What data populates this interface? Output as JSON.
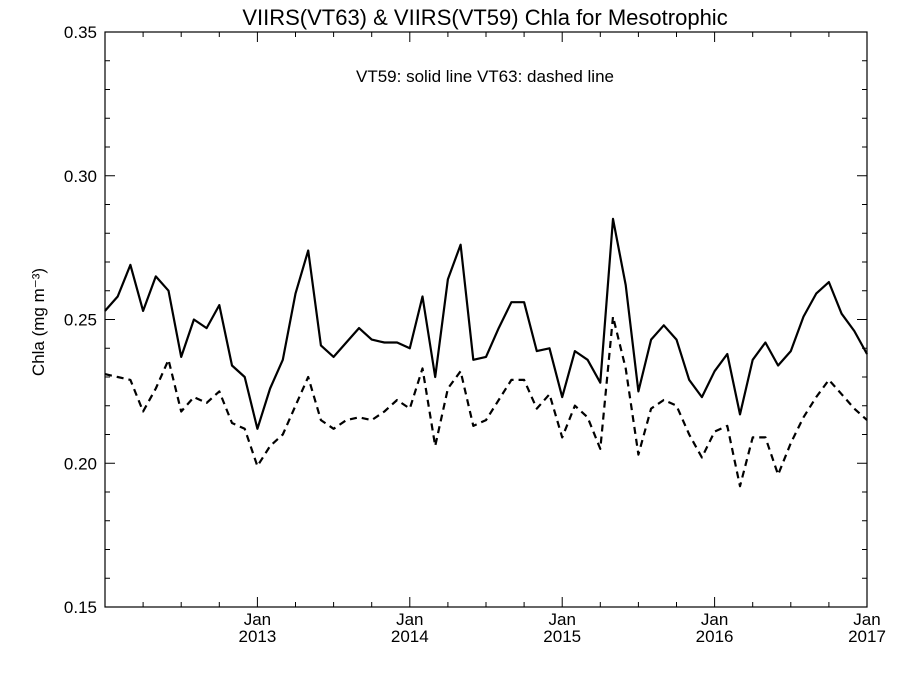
{
  "chart_data": {
    "type": "line",
    "title": "VIIRS(VT63) & VIIRS(VT59)  Chla for Mesotrophic",
    "annotation": "VT59: solid line   VT63: dashed line",
    "ylabel": "Chla (mg m⁻³)",
    "xlabel": "",
    "ylim": [
      0.15,
      0.35
    ],
    "xlim": [
      "2012-01",
      "2017-01"
    ],
    "y_ticks": [
      "0.15",
      "0.20",
      "0.25",
      "0.30",
      "0.35"
    ],
    "x_ticks": [
      {
        "month": "Jan",
        "year": "2013",
        "date": "2013-01"
      },
      {
        "month": "Jan",
        "year": "2014",
        "date": "2014-01"
      },
      {
        "month": "Jan",
        "year": "2015",
        "date": "2015-01"
      },
      {
        "month": "Jan",
        "year": "2016",
        "date": "2016-01"
      },
      {
        "month": "Jan",
        "year": "2017",
        "date": "2017-01"
      }
    ],
    "x": [
      "2012-01",
      "2012-02",
      "2012-03",
      "2012-04",
      "2012-05",
      "2012-06",
      "2012-07",
      "2012-08",
      "2012-09",
      "2012-10",
      "2012-11",
      "2012-12",
      "2013-01",
      "2013-02",
      "2013-03",
      "2013-04",
      "2013-05",
      "2013-06",
      "2013-07",
      "2013-08",
      "2013-09",
      "2013-10",
      "2013-11",
      "2013-12",
      "2014-01",
      "2014-02",
      "2014-03",
      "2014-04",
      "2014-05",
      "2014-06",
      "2014-07",
      "2014-08",
      "2014-09",
      "2014-10",
      "2014-11",
      "2014-12",
      "2015-01",
      "2015-02",
      "2015-03",
      "2015-04",
      "2015-05",
      "2015-06",
      "2015-07",
      "2015-08",
      "2015-09",
      "2015-10",
      "2015-11",
      "2015-12",
      "2016-01",
      "2016-02",
      "2016-03",
      "2016-04",
      "2016-05",
      "2016-06",
      "2016-07",
      "2016-08",
      "2016-09",
      "2016-10",
      "2016-11",
      "2016-12",
      "2017-01"
    ],
    "series": [
      {
        "name": "VT59",
        "style": "solid",
        "color": "#000000",
        "values": [
          0.253,
          0.258,
          0.269,
          0.253,
          0.265,
          0.26,
          0.237,
          0.25,
          0.247,
          0.255,
          0.234,
          0.23,
          0.212,
          0.226,
          0.236,
          0.259,
          0.274,
          0.241,
          0.237,
          0.242,
          0.247,
          0.243,
          0.242,
          0.242,
          0.24,
          0.258,
          0.23,
          0.264,
          0.276,
          0.236,
          0.237,
          0.247,
          0.256,
          0.256,
          0.239,
          0.24,
          0.223,
          0.239,
          0.236,
          0.228,
          0.285,
          0.262,
          0.225,
          0.243,
          0.248,
          0.243,
          0.229,
          0.223,
          0.232,
          0.238,
          0.217,
          0.236,
          0.242,
          0.234,
          0.239,
          0.251,
          0.259,
          0.263,
          0.252,
          0.246,
          0.238
        ]
      },
      {
        "name": "VT63",
        "style": "dashed",
        "color": "#000000",
        "values": [
          0.231,
          0.23,
          0.229,
          0.218,
          0.226,
          0.236,
          0.218,
          0.223,
          0.221,
          0.225,
          0.214,
          0.212,
          0.199,
          0.206,
          0.21,
          0.22,
          0.23,
          0.215,
          0.212,
          0.215,
          0.216,
          0.215,
          0.218,
          0.222,
          0.219,
          0.233,
          0.206,
          0.226,
          0.232,
          0.213,
          0.215,
          0.222,
          0.229,
          0.229,
          0.219,
          0.224,
          0.209,
          0.22,
          0.216,
          0.205,
          0.251,
          0.233,
          0.203,
          0.219,
          0.222,
          0.22,
          0.21,
          0.202,
          0.211,
          0.213,
          0.192,
          0.209,
          0.209,
          0.196,
          0.207,
          0.216,
          0.223,
          0.229,
          0.224,
          0.219,
          0.215
        ]
      }
    ]
  }
}
